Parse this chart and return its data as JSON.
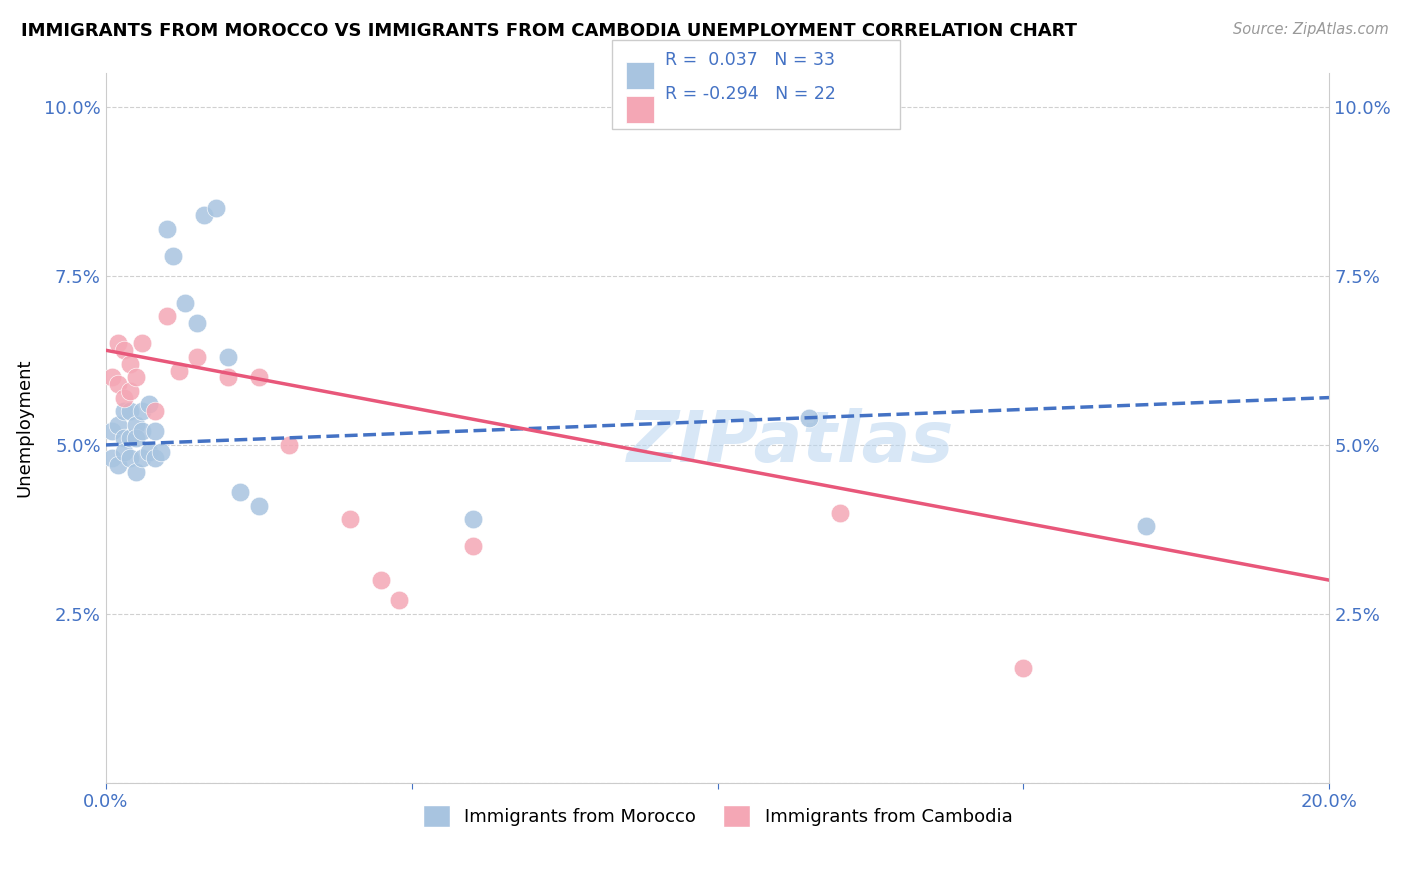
{
  "title": "IMMIGRANTS FROM MOROCCO VS IMMIGRANTS FROM CAMBODIA UNEMPLOYMENT CORRELATION CHART",
  "source": "Source: ZipAtlas.com",
  "ylabel_label": "Unemployment",
  "xmin": 0.0,
  "xmax": 0.2,
  "ymin": 0.0,
  "ymax": 0.105,
  "xticks": [
    0.0,
    0.05,
    0.1,
    0.15,
    0.2
  ],
  "xticklabels": [
    "0.0%",
    "",
    "",
    "",
    "20.0%"
  ],
  "yticks": [
    0.0,
    0.025,
    0.05,
    0.075,
    0.1
  ],
  "yticklabels": [
    "",
    "2.5%",
    "5.0%",
    "7.5%",
    "10.0%"
  ],
  "morocco_color": "#a8c4e0",
  "cambodia_color": "#f4a7b5",
  "morocco_line_color": "#4472c4",
  "cambodia_line_color": "#e8577a",
  "R_morocco": 0.037,
  "N_morocco": 33,
  "R_cambodia": -0.294,
  "N_cambodia": 22,
  "legend_text_color": "#4472c4",
  "watermark": "ZIPatlas",
  "morocco_line_x0": 0.0,
  "morocco_line_y0": 0.05,
  "morocco_line_x1": 0.2,
  "morocco_line_y1": 0.057,
  "cambodia_line_x0": 0.0,
  "cambodia_line_y0": 0.064,
  "cambodia_line_x1": 0.2,
  "cambodia_line_y1": 0.03,
  "morocco_x": [
    0.001,
    0.001,
    0.002,
    0.002,
    0.003,
    0.003,
    0.003,
    0.004,
    0.004,
    0.004,
    0.005,
    0.005,
    0.005,
    0.006,
    0.006,
    0.006,
    0.007,
    0.007,
    0.008,
    0.008,
    0.009,
    0.01,
    0.011,
    0.013,
    0.015,
    0.016,
    0.018,
    0.02,
    0.022,
    0.025,
    0.06,
    0.115,
    0.17
  ],
  "morocco_y": [
    0.052,
    0.048,
    0.053,
    0.047,
    0.055,
    0.051,
    0.049,
    0.055,
    0.051,
    0.048,
    0.053,
    0.051,
    0.046,
    0.055,
    0.052,
    0.048,
    0.056,
    0.049,
    0.052,
    0.048,
    0.049,
    0.082,
    0.078,
    0.071,
    0.068,
    0.084,
    0.085,
    0.063,
    0.043,
    0.041,
    0.039,
    0.054,
    0.038
  ],
  "cambodia_x": [
    0.001,
    0.002,
    0.002,
    0.003,
    0.003,
    0.004,
    0.004,
    0.005,
    0.006,
    0.008,
    0.01,
    0.012,
    0.015,
    0.02,
    0.025,
    0.03,
    0.04,
    0.045,
    0.048,
    0.06,
    0.12,
    0.15
  ],
  "cambodia_y": [
    0.06,
    0.065,
    0.059,
    0.064,
    0.057,
    0.062,
    0.058,
    0.06,
    0.065,
    0.055,
    0.069,
    0.061,
    0.063,
    0.06,
    0.06,
    0.05,
    0.039,
    0.03,
    0.027,
    0.035,
    0.04,
    0.017
  ]
}
